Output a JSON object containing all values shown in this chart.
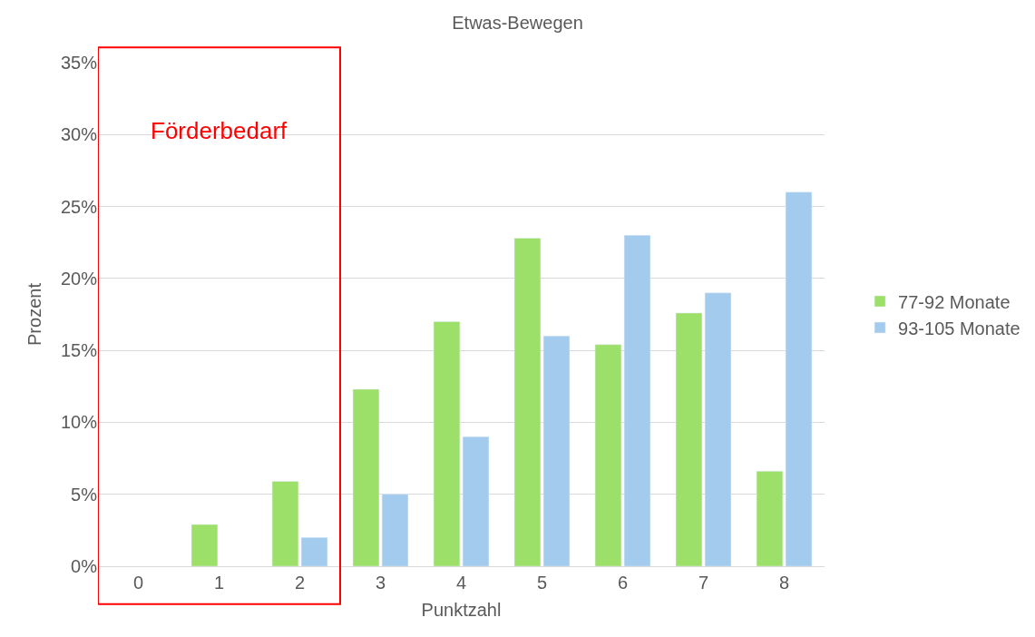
{
  "chart_data": {
    "type": "bar",
    "title": "Etwas-Bewegen",
    "xlabel": "Punktzahl",
    "ylabel": "Prozent",
    "categories": [
      "0",
      "1",
      "2",
      "3",
      "4",
      "5",
      "6",
      "7",
      "8"
    ],
    "series": [
      {
        "name": "77-92 Monate",
        "color": "#9de069",
        "values": [
          null,
          2.9,
          5.9,
          12.3,
          17.0,
          22.8,
          15.4,
          17.6,
          6.6
        ]
      },
      {
        "name": "93-105 Monate",
        "color": "#a3cbee",
        "values": [
          null,
          null,
          2.0,
          5.0,
          9.0,
          16.0,
          23.0,
          19.0,
          26.0
        ]
      }
    ],
    "ylim": [
      0,
      35
    ],
    "yticks": [
      {
        "value": 0,
        "label": "0%"
      },
      {
        "value": 5,
        "label": "5%"
      },
      {
        "value": 10,
        "label": "10%"
      },
      {
        "value": 15,
        "label": "15%"
      },
      {
        "value": 20,
        "label": "20%"
      },
      {
        "value": 25,
        "label": "25%"
      },
      {
        "value": 30,
        "label": "30%"
      },
      {
        "value": 35,
        "label": "35%"
      }
    ],
    "annotations": [
      "Förderbedarf"
    ],
    "grid": "y",
    "legend": "right"
  }
}
